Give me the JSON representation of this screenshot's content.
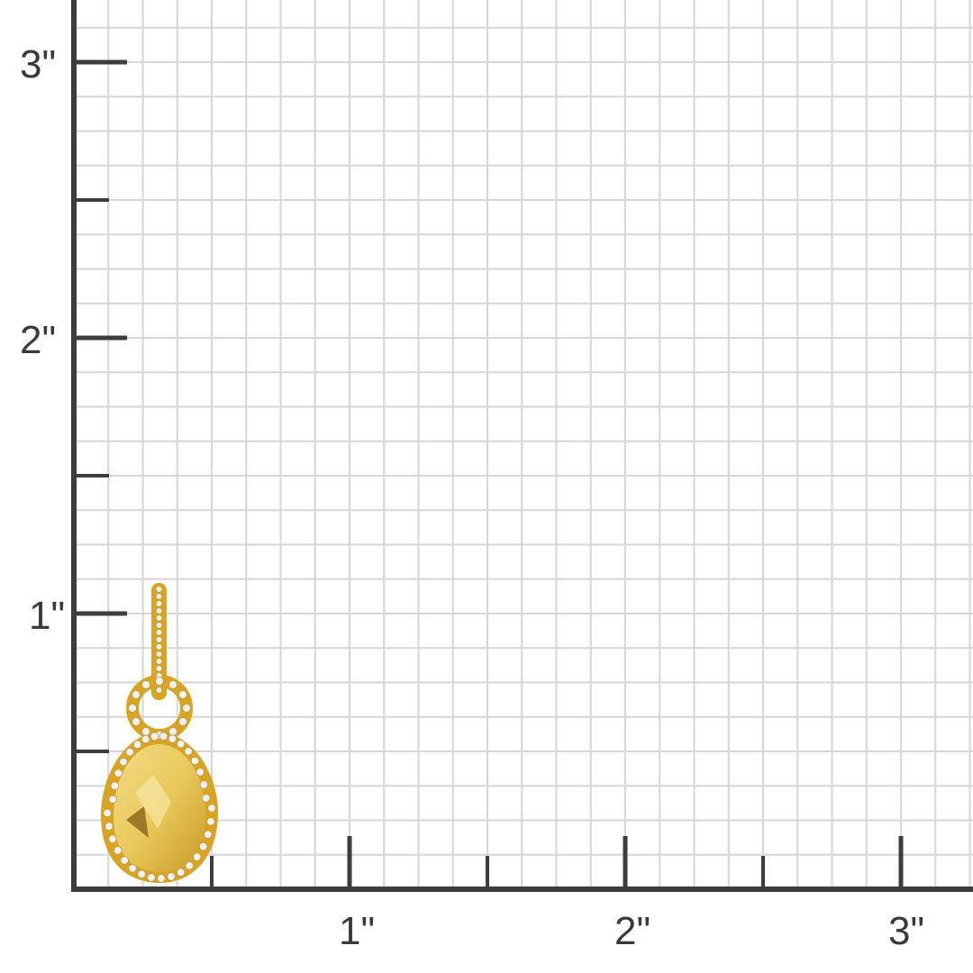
{
  "ruler": {
    "unit_mark": "\"",
    "x_labels": [
      "1\"",
      "2\"",
      "3\""
    ],
    "y_labels": [
      "1\"",
      "2\"",
      "3\""
    ],
    "subdivisions_per_inch": 8
  },
  "colors": {
    "axis": "#3d3d3d",
    "grid": "#d6d6d8",
    "gold": "#d9a521",
    "stone": "#e8c85a"
  },
  "product": {
    "name_icon": "citrine-pear-halo-pendant",
    "height_inches": 1.1
  }
}
